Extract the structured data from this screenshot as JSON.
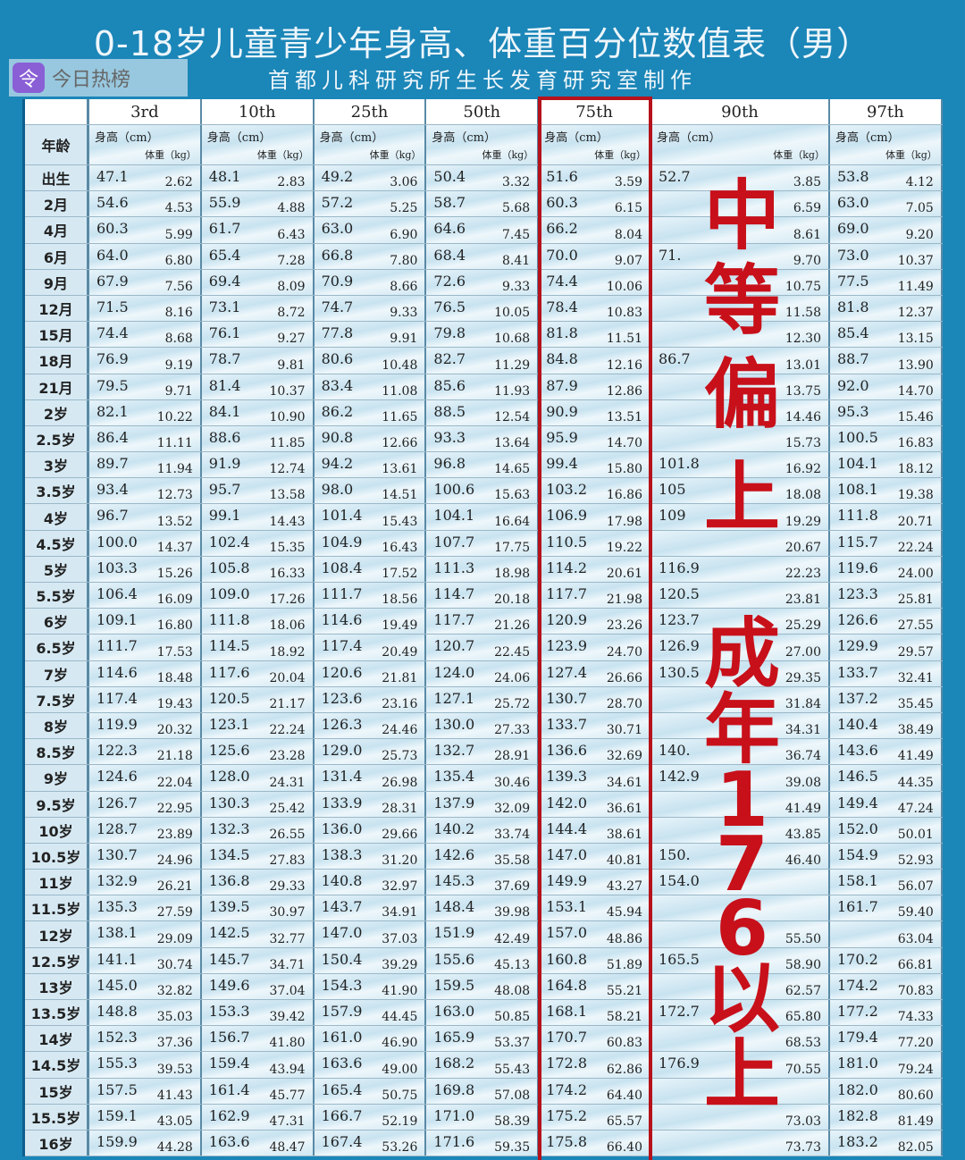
{
  "title": "0-18岁儿童青少年身高、体重百分位数值表（男）",
  "subtitle": "首都儿科研究所生长发育研究室制作",
  "age_header": "年龄",
  "height_label": "身高（cm）",
  "weight_label": "体重（kg）",
  "percentiles": [
    "3rd",
    "10th",
    "25th",
    "50th",
    "75th",
    "90th",
    "97th"
  ],
  "highlight_color": "#b5121b",
  "overlay_text_1": [
    "中",
    "等",
    "偏",
    "上"
  ],
  "overlay_text_2": [
    "成",
    "年",
    "176",
    "以",
    "上"
  ],
  "watermark": "今日热榜",
  "rows": [
    [
      "出生",
      "47.1",
      "2.62",
      "48.1",
      "2.83",
      "49.2",
      "3.06",
      "50.4",
      "3.32",
      "51.6",
      "3.59",
      "52.7",
      "3.85",
      "53.8",
      "4.12"
    ],
    [
      "2月",
      "54.6",
      "4.53",
      "55.9",
      "4.88",
      "57.2",
      "5.25",
      "58.7",
      "5.68",
      "60.3",
      "6.15",
      "",
      "6.59",
      "63.0",
      "7.05"
    ],
    [
      "4月",
      "60.3",
      "5.99",
      "61.7",
      "6.43",
      "63.0",
      "6.90",
      "64.6",
      "7.45",
      "66.2",
      "8.04",
      "",
      "8.61",
      "69.0",
      "9.20"
    ],
    [
      "6月",
      "64.0",
      "6.80",
      "65.4",
      "7.28",
      "66.8",
      "7.80",
      "68.4",
      "8.41",
      "70.0",
      "9.07",
      "71.",
      "9.70",
      "73.0",
      "10.37"
    ],
    [
      "9月",
      "67.9",
      "7.56",
      "69.4",
      "8.09",
      "70.9",
      "8.66",
      "72.6",
      "9.33",
      "74.4",
      "10.06",
      "",
      "10.75",
      "77.5",
      "11.49"
    ],
    [
      "12月",
      "71.5",
      "8.16",
      "73.1",
      "8.72",
      "74.7",
      "9.33",
      "76.5",
      "10.05",
      "78.4",
      "10.83",
      "",
      "11.58",
      "81.8",
      "12.37"
    ],
    [
      "15月",
      "74.4",
      "8.68",
      "76.1",
      "9.27",
      "77.8",
      "9.91",
      "79.8",
      "10.68",
      "81.8",
      "11.51",
      "",
      "12.30",
      "85.4",
      "13.15"
    ],
    [
      "18月",
      "76.9",
      "9.19",
      "78.7",
      "9.81",
      "80.6",
      "10.48",
      "82.7",
      "11.29",
      "84.8",
      "12.16",
      "86.7",
      "13.01",
      "88.7",
      "13.90"
    ],
    [
      "21月",
      "79.5",
      "9.71",
      "81.4",
      "10.37",
      "83.4",
      "11.08",
      "85.6",
      "11.93",
      "87.9",
      "12.86",
      "",
      "13.75",
      "92.0",
      "14.70"
    ],
    [
      "2岁",
      "82.1",
      "10.22",
      "84.1",
      "10.90",
      "86.2",
      "11.65",
      "88.5",
      "12.54",
      "90.9",
      "13.51",
      "",
      "14.46",
      "95.3",
      "15.46"
    ],
    [
      "2.5岁",
      "86.4",
      "11.11",
      "88.6",
      "11.85",
      "90.8",
      "12.66",
      "93.3",
      "13.64",
      "95.9",
      "14.70",
      "",
      "15.73",
      "100.5",
      "16.83"
    ],
    [
      "3岁",
      "89.7",
      "11.94",
      "91.9",
      "12.74",
      "94.2",
      "13.61",
      "96.8",
      "14.65",
      "99.4",
      "15.80",
      "101.8",
      "16.92",
      "104.1",
      "18.12"
    ],
    [
      "3.5岁",
      "93.4",
      "12.73",
      "95.7",
      "13.58",
      "98.0",
      "14.51",
      "100.6",
      "15.63",
      "103.2",
      "16.86",
      "105",
      "18.08",
      "108.1",
      "19.38"
    ],
    [
      "4岁",
      "96.7",
      "13.52",
      "99.1",
      "14.43",
      "101.4",
      "15.43",
      "104.1",
      "16.64",
      "106.9",
      "17.98",
      "109",
      "19.29",
      "111.8",
      "20.71"
    ],
    [
      "4.5岁",
      "100.0",
      "14.37",
      "102.4",
      "15.35",
      "104.9",
      "16.43",
      "107.7",
      "17.75",
      "110.5",
      "19.22",
      "",
      "20.67",
      "115.7",
      "22.24"
    ],
    [
      "5岁",
      "103.3",
      "15.26",
      "105.8",
      "16.33",
      "108.4",
      "17.52",
      "111.3",
      "18.98",
      "114.2",
      "20.61",
      "116.9",
      "22.23",
      "119.6",
      "24.00"
    ],
    [
      "5.5岁",
      "106.4",
      "16.09",
      "109.0",
      "17.26",
      "111.7",
      "18.56",
      "114.7",
      "20.18",
      "117.7",
      "21.98",
      "120.5",
      "23.81",
      "123.3",
      "25.81"
    ],
    [
      "6岁",
      "109.1",
      "16.80",
      "111.8",
      "18.06",
      "114.6",
      "19.49",
      "117.7",
      "21.26",
      "120.9",
      "23.26",
      "123.7",
      "25.29",
      "126.6",
      "27.55"
    ],
    [
      "6.5岁",
      "111.7",
      "17.53",
      "114.5",
      "18.92",
      "117.4",
      "20.49",
      "120.7",
      "22.45",
      "123.9",
      "24.70",
      "126.9",
      "27.00",
      "129.9",
      "29.57"
    ],
    [
      "7岁",
      "114.6",
      "18.48",
      "117.6",
      "20.04",
      "120.6",
      "21.81",
      "124.0",
      "24.06",
      "127.4",
      "26.66",
      "130.5",
      "29.35",
      "133.7",
      "32.41"
    ],
    [
      "7.5岁",
      "117.4",
      "19.43",
      "120.5",
      "21.17",
      "123.6",
      "23.16",
      "127.1",
      "25.72",
      "130.7",
      "28.70",
      "",
      "31.84",
      "137.2",
      "35.45"
    ],
    [
      "8岁",
      "119.9",
      "20.32",
      "123.1",
      "22.24",
      "126.3",
      "24.46",
      "130.0",
      "27.33",
      "133.7",
      "30.71",
      "",
      "34.31",
      "140.4",
      "38.49"
    ],
    [
      "8.5岁",
      "122.3",
      "21.18",
      "125.6",
      "23.28",
      "129.0",
      "25.73",
      "132.7",
      "28.91",
      "136.6",
      "32.69",
      "140.",
      "36.74",
      "143.6",
      "41.49"
    ],
    [
      "9岁",
      "124.6",
      "22.04",
      "128.0",
      "24.31",
      "131.4",
      "26.98",
      "135.4",
      "30.46",
      "139.3",
      "34.61",
      "142.9",
      "39.08",
      "146.5",
      "44.35"
    ],
    [
      "9.5岁",
      "126.7",
      "22.95",
      "130.3",
      "25.42",
      "133.9",
      "28.31",
      "137.9",
      "32.09",
      "142.0",
      "36.61",
      "",
      "41.49",
      "149.4",
      "47.24"
    ],
    [
      "10岁",
      "128.7",
      "23.89",
      "132.3",
      "26.55",
      "136.0",
      "29.66",
      "140.2",
      "33.74",
      "144.4",
      "38.61",
      "",
      "43.85",
      "152.0",
      "50.01"
    ],
    [
      "10.5岁",
      "130.7",
      "24.96",
      "134.5",
      "27.83",
      "138.3",
      "31.20",
      "142.6",
      "35.58",
      "147.0",
      "40.81",
      "150.",
      "46.40",
      "154.9",
      "52.93"
    ],
    [
      "11岁",
      "132.9",
      "26.21",
      "136.8",
      "29.33",
      "140.8",
      "32.97",
      "145.3",
      "37.69",
      "149.9",
      "43.27",
      "154.0",
      "",
      "158.1",
      "56.07"
    ],
    [
      "11.5岁",
      "135.3",
      "27.59",
      "139.5",
      "30.97",
      "143.7",
      "34.91",
      "148.4",
      "39.98",
      "153.1",
      "45.94",
      "",
      "",
      "161.7",
      "59.40"
    ],
    [
      "12岁",
      "138.1",
      "29.09",
      "142.5",
      "32.77",
      "147.0",
      "37.03",
      "151.9",
      "42.49",
      "157.0",
      "48.86",
      "",
      "55.50",
      "",
      "63.04"
    ],
    [
      "12.5岁",
      "141.1",
      "30.74",
      "145.7",
      "34.71",
      "150.4",
      "39.29",
      "155.6",
      "45.13",
      "160.8",
      "51.89",
      "165.5",
      "58.90",
      "170.2",
      "66.81"
    ],
    [
      "13岁",
      "145.0",
      "32.82",
      "149.6",
      "37.04",
      "154.3",
      "41.90",
      "159.5",
      "48.08",
      "164.8",
      "55.21",
      "",
      "62.57",
      "174.2",
      "70.83"
    ],
    [
      "13.5岁",
      "148.8",
      "35.03",
      "153.3",
      "39.42",
      "157.9",
      "44.45",
      "163.0",
      "50.85",
      "168.1",
      "58.21",
      "172.7",
      "65.80",
      "177.2",
      "74.33"
    ],
    [
      "14岁",
      "152.3",
      "37.36",
      "156.7",
      "41.80",
      "161.0",
      "46.90",
      "165.9",
      "53.37",
      "170.7",
      "60.83",
      "",
      "68.53",
      "179.4",
      "77.20"
    ],
    [
      "14.5岁",
      "155.3",
      "39.53",
      "159.4",
      "43.94",
      "163.6",
      "49.00",
      "168.2",
      "55.43",
      "172.8",
      "62.86",
      "176.9",
      "70.55",
      "181.0",
      "79.24"
    ],
    [
      "15岁",
      "157.5",
      "41.43",
      "161.4",
      "45.77",
      "165.4",
      "50.75",
      "169.8",
      "57.08",
      "174.2",
      "64.40",
      "",
      "",
      "182.0",
      "80.60"
    ],
    [
      "15.5岁",
      "159.1",
      "43.05",
      "162.9",
      "47.31",
      "166.7",
      "52.19",
      "171.0",
      "58.39",
      "175.2",
      "65.57",
      "",
      "73.03",
      "182.8",
      "81.49"
    ],
    [
      "16岁",
      "159.9",
      "44.28",
      "163.6",
      "48.47",
      "167.4",
      "53.26",
      "171.6",
      "59.35",
      "175.8",
      "66.40",
      "",
      "73.73",
      "183.2",
      "82.05"
    ]
  ]
}
